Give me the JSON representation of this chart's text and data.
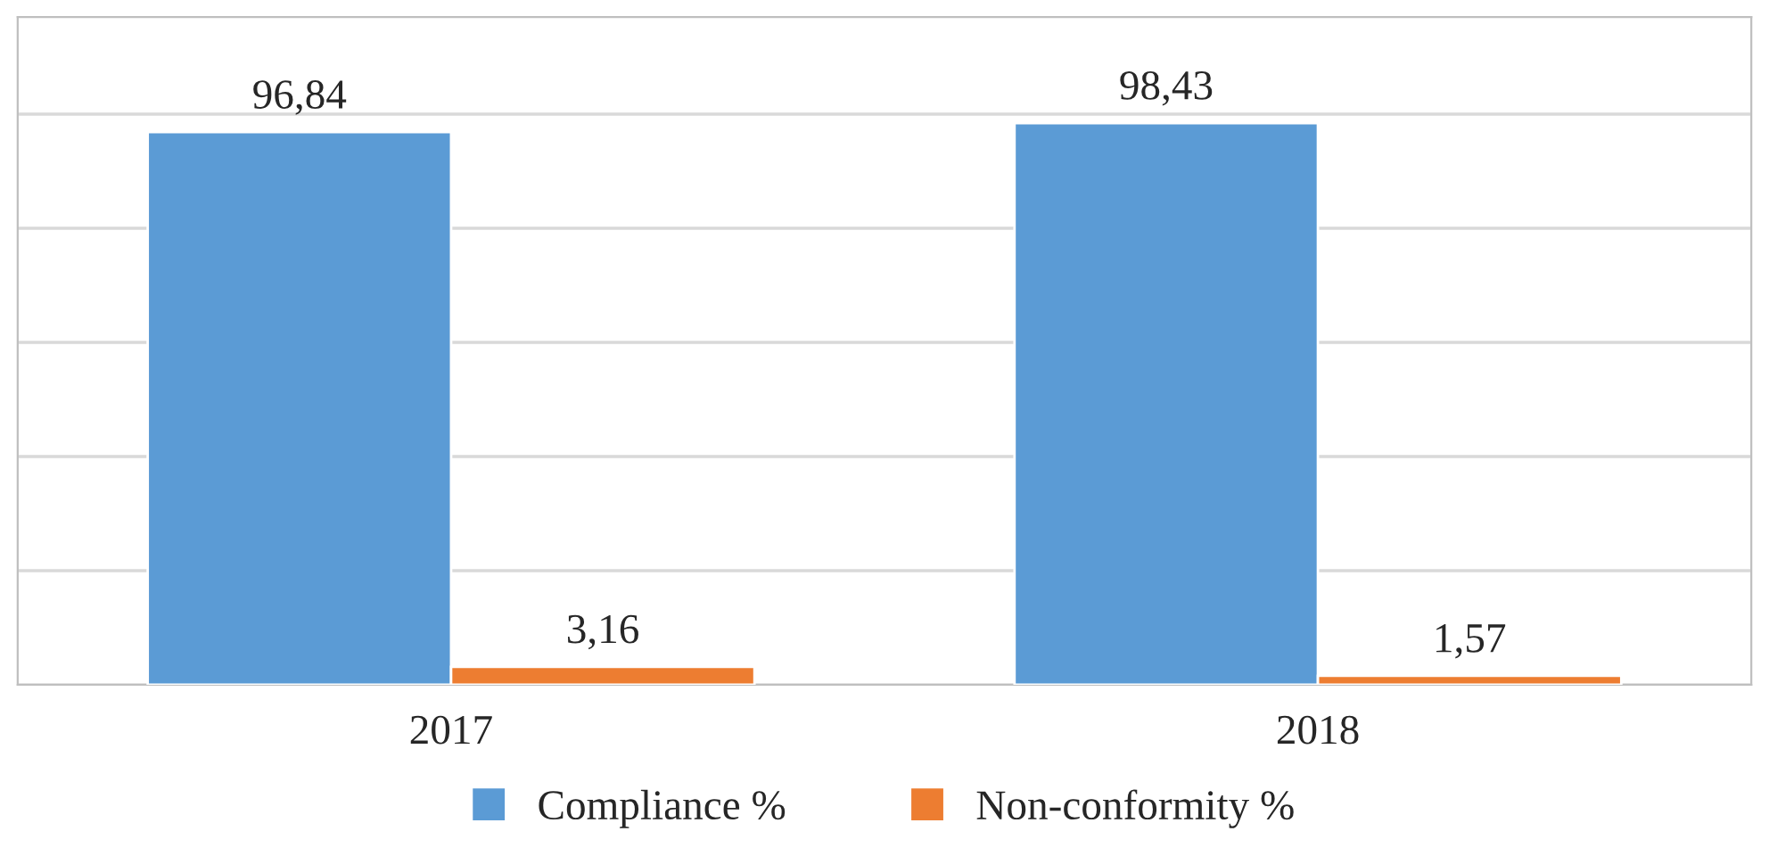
{
  "chart_data": {
    "type": "bar",
    "categories": [
      "2017",
      "2018"
    ],
    "series": [
      {
        "name": "Compliance %",
        "color": "#5b9bd5",
        "values": [
          96.84,
          98.43
        ],
        "value_labels": [
          "96,84",
          "98,43"
        ]
      },
      {
        "name": "Non-conformity %",
        "color": "#ed7d31",
        "values": [
          3.16,
          1.57
        ],
        "value_labels": [
          "3,16",
          "1,57"
        ]
      }
    ],
    "ylim": [
      0,
      117
    ],
    "yticks": [
      {
        "value": 0,
        "label": null
      },
      {
        "value": 20,
        "label": null
      },
      {
        "value": 40,
        "label": null
      },
      {
        "value": 60,
        "label": null
      },
      {
        "value": 80,
        "label": null
      },
      {
        "value": 100,
        "label": null
      }
    ],
    "tick_labels": "x",
    "grid": "y",
    "legend": "bottom"
  }
}
